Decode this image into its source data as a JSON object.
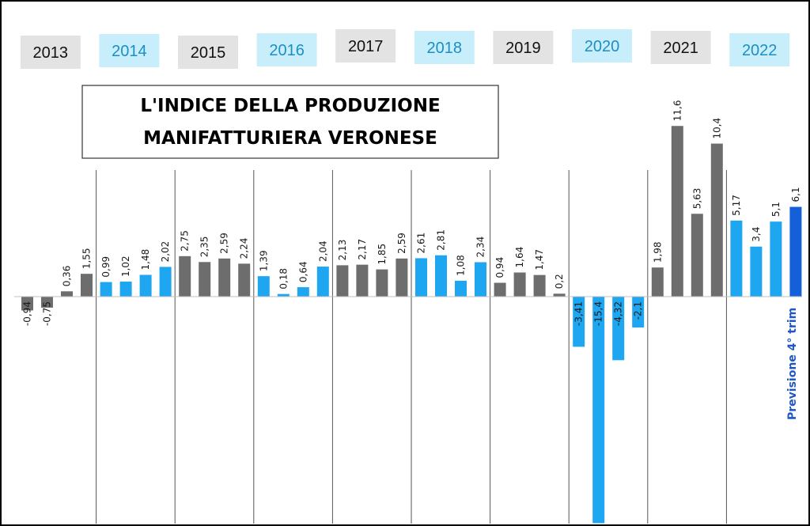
{
  "chart_data": {
    "type": "bar",
    "title_lines": [
      "L'INDICE DELLA PRODUZIONE",
      "MANIFATTURIERA VERONESE"
    ],
    "years": [
      "2013",
      "2014",
      "2015",
      "2016",
      "2017",
      "2018",
      "2019",
      "2020",
      "2021",
      "2022"
    ],
    "quarters_per_year": 4,
    "values": [
      -0.94,
      -0.75,
      0.36,
      1.55,
      0.99,
      1.02,
      1.48,
      2.02,
      2.75,
      2.35,
      2.59,
      2.24,
      1.39,
      0.18,
      0.64,
      2.04,
      2.13,
      2.17,
      1.85,
      2.59,
      2.61,
      2.81,
      1.08,
      2.34,
      0.94,
      1.64,
      1.47,
      0.2,
      -3.41,
      -15.4,
      -4.32,
      -2.1,
      1.98,
      11.6,
      5.63,
      10.4,
      5.17,
      3.4,
      5.1,
      6.1
    ],
    "value_labels": [
      "-0,94",
      "-0,75",
      "0,36",
      "1,55",
      "0,99",
      "1,02",
      "1,48",
      "2,02",
      "2,75",
      "2,35",
      "2,59",
      "2,24",
      "1,39",
      "0,18",
      "0,64",
      "2,04",
      "2,13",
      "2,17",
      "1,85",
      "2,59",
      "2,61",
      "2,81",
      "1,08",
      "2,34",
      "0,94",
      "1,64",
      "1,47",
      "0,2",
      "-3,41",
      "-15,4",
      "-4,32",
      "-2,1",
      "1,98",
      "11,6",
      "5,63",
      "10,4",
      "5,17",
      "3,4",
      "5,1",
      "6,1"
    ],
    "forecast_index": 39,
    "forecast_label": "Previsione 4° trim",
    "ylim": [
      -15.4,
      11.6
    ],
    "colors": {
      "gray_bar": "#6d6d6d",
      "blue_bar": "#1ea7f0",
      "forecast_bar": "#1460d8",
      "gray_label_bg": "#e3e3e3",
      "blue_label_bg": "#c8eefb",
      "gray_label_text": "#111111",
      "blue_label_text": "#1b8fc4"
    }
  }
}
